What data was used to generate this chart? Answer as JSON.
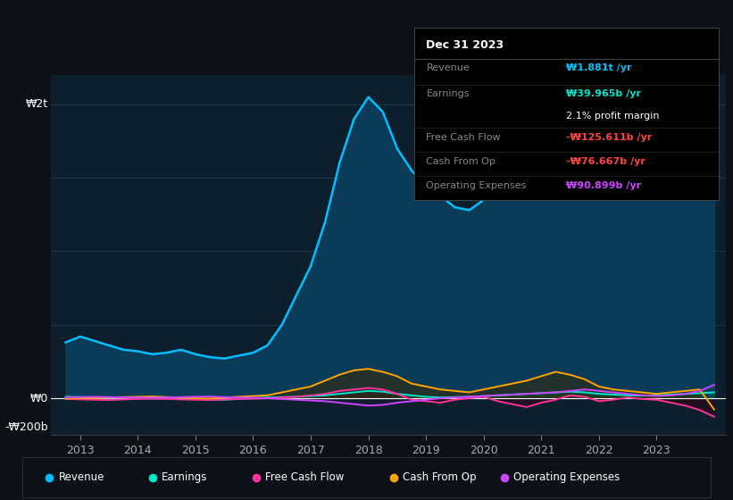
{
  "bg_color": "#0d1117",
  "plot_bg_color": "#0d1f2d",
  "grid_color": "#1e3a4a",
  "ylabel_W2t": "₩2t",
  "ylabel_W0": "₩0",
  "ylabel_Wn200b": "-₩200b",
  "years": [
    2012.75,
    2013.0,
    2013.25,
    2013.5,
    2013.75,
    2014.0,
    2014.25,
    2014.5,
    2014.75,
    2015.0,
    2015.25,
    2015.5,
    2015.75,
    2016.0,
    2016.25,
    2016.5,
    2016.75,
    2017.0,
    2017.25,
    2017.5,
    2017.75,
    2018.0,
    2018.25,
    2018.5,
    2018.75,
    2019.0,
    2019.25,
    2019.5,
    2019.75,
    2020.0,
    2020.25,
    2020.5,
    2020.75,
    2021.0,
    2021.25,
    2021.5,
    2021.75,
    2022.0,
    2022.25,
    2022.5,
    2022.75,
    2023.0,
    2023.25,
    2023.5,
    2023.75,
    2024.0
  ],
  "revenue": [
    380,
    420,
    390,
    360,
    330,
    320,
    300,
    310,
    330,
    300,
    280,
    270,
    290,
    310,
    360,
    500,
    700,
    900,
    1200,
    1600,
    1900,
    2050,
    1950,
    1700,
    1550,
    1450,
    1380,
    1300,
    1280,
    1350,
    1400,
    1380,
    1450,
    1500,
    1550,
    1600,
    1580,
    1600,
    1620,
    1650,
    1680,
    1700,
    1720,
    1750,
    1800,
    1881
  ],
  "earnings": [
    10,
    8,
    5,
    3,
    5,
    2,
    -2,
    0,
    5,
    -5,
    -8,
    -10,
    -5,
    0,
    5,
    8,
    10,
    15,
    20,
    30,
    40,
    50,
    45,
    30,
    20,
    10,
    5,
    8,
    10,
    15,
    20,
    25,
    30,
    35,
    40,
    45,
    40,
    30,
    25,
    20,
    18,
    20,
    25,
    30,
    35,
    40
  ],
  "free_cash_flow": [
    -5,
    -8,
    -10,
    -12,
    -8,
    -5,
    -3,
    -5,
    -8,
    -10,
    -12,
    -8,
    -5,
    -3,
    0,
    5,
    10,
    20,
    30,
    50,
    60,
    70,
    60,
    30,
    -10,
    -20,
    -30,
    -10,
    0,
    10,
    -20,
    -40,
    -60,
    -30,
    -10,
    20,
    10,
    -20,
    -10,
    5,
    -5,
    -10,
    -30,
    -50,
    -80,
    -125.6
  ],
  "cash_from_op": [
    -2,
    0,
    2,
    5,
    8,
    10,
    12,
    8,
    5,
    0,
    -2,
    5,
    10,
    15,
    20,
    40,
    60,
    80,
    120,
    160,
    190,
    200,
    180,
    150,
    100,
    80,
    60,
    50,
    40,
    60,
    80,
    100,
    120,
    150,
    180,
    160,
    130,
    80,
    60,
    50,
    40,
    30,
    40,
    50,
    60,
    -76.7
  ],
  "operating_expenses": [
    5,
    8,
    10,
    8,
    6,
    5,
    3,
    5,
    8,
    10,
    12,
    8,
    5,
    3,
    0,
    -5,
    -10,
    -15,
    -20,
    -30,
    -40,
    -50,
    -45,
    -30,
    -20,
    -10,
    0,
    5,
    10,
    15,
    20,
    25,
    30,
    35,
    40,
    50,
    60,
    50,
    40,
    30,
    20,
    15,
    20,
    30,
    50,
    90.9
  ],
  "revenue_color": "#00bfff",
  "earnings_color": "#00e5cc",
  "fcf_color": "#ff3399",
  "cfop_color": "#ffa500",
  "opex_color": "#cc44ff",
  "revenue_fill": "#0a4060",
  "tooltip_bg": "#000000",
  "tooltip_title": "Dec 31 2023",
  "tooltip_revenue_label": "Revenue",
  "tooltip_revenue_value": "₩1.881t /yr",
  "tooltip_earnings_label": "Earnings",
  "tooltip_earnings_value": "₩39.965b /yr",
  "tooltip_margin": "2.1% profit margin",
  "tooltip_fcf_label": "Free Cash Flow",
  "tooltip_fcf_value": "-₩125.611b /yr",
  "tooltip_cfop_label": "Cash From Op",
  "tooltip_cfop_value": "-₩76.667b /yr",
  "tooltip_opex_label": "Operating Expenses",
  "tooltip_opex_value": "₩90.899b /yr",
  "xmin": 2012.5,
  "xmax": 2024.2,
  "ymin": -250,
  "ymax": 2200,
  "x_tick_years": [
    2013,
    2014,
    2015,
    2016,
    2017,
    2018,
    2019,
    2020,
    2021,
    2022,
    2023
  ],
  "legend_items": [
    "Revenue",
    "Earnings",
    "Free Cash Flow",
    "Cash From Op",
    "Operating Expenses"
  ],
  "legend_colors": [
    "#00bfff",
    "#00e5cc",
    "#ff3399",
    "#ffa500",
    "#cc44ff"
  ]
}
